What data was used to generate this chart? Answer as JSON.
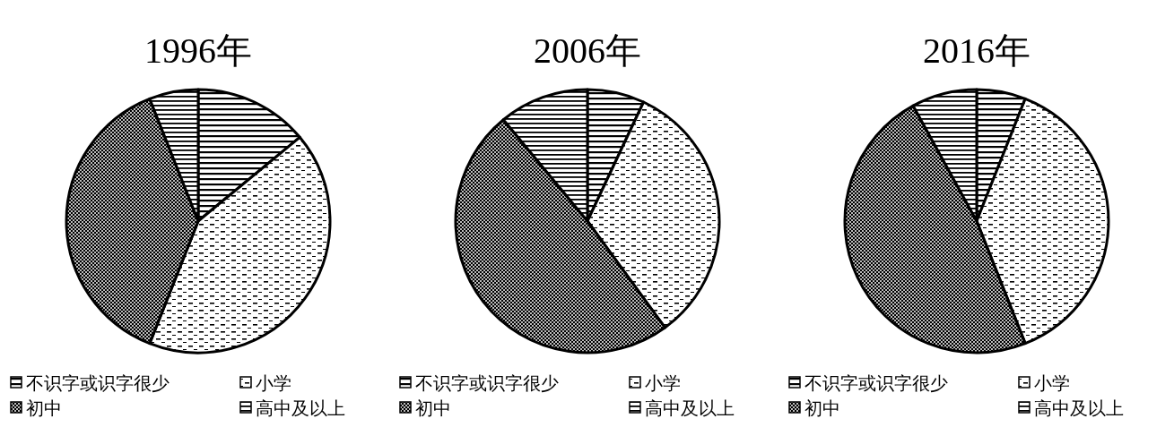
{
  "chart_data": [
    {
      "type": "pie",
      "title": "1996年",
      "categories": [
        "不识字或识字很少",
        "小学",
        "初中",
        "高中及以上"
      ],
      "values": [
        14,
        42,
        38,
        6
      ],
      "colors": [
        "#000000",
        "#000000",
        "#000000",
        "#000000"
      ],
      "legend": "bottom"
    },
    {
      "type": "pie",
      "title": "2006年",
      "categories": [
        "不识字或识字很少",
        "小学",
        "初中",
        "高中及以上"
      ],
      "values": [
        7,
        33,
        49,
        11
      ],
      "colors": [
        "#000000",
        "#000000",
        "#000000",
        "#000000"
      ],
      "legend": "bottom"
    },
    {
      "type": "pie",
      "title": "2016年",
      "categories": [
        "不识字或识字很少",
        "小学",
        "初中",
        "高中及以上"
      ],
      "values": [
        6,
        38,
        48,
        8
      ],
      "colors": [
        "#000000",
        "#000000",
        "#000000",
        "#000000"
      ],
      "legend": "bottom"
    }
  ]
}
